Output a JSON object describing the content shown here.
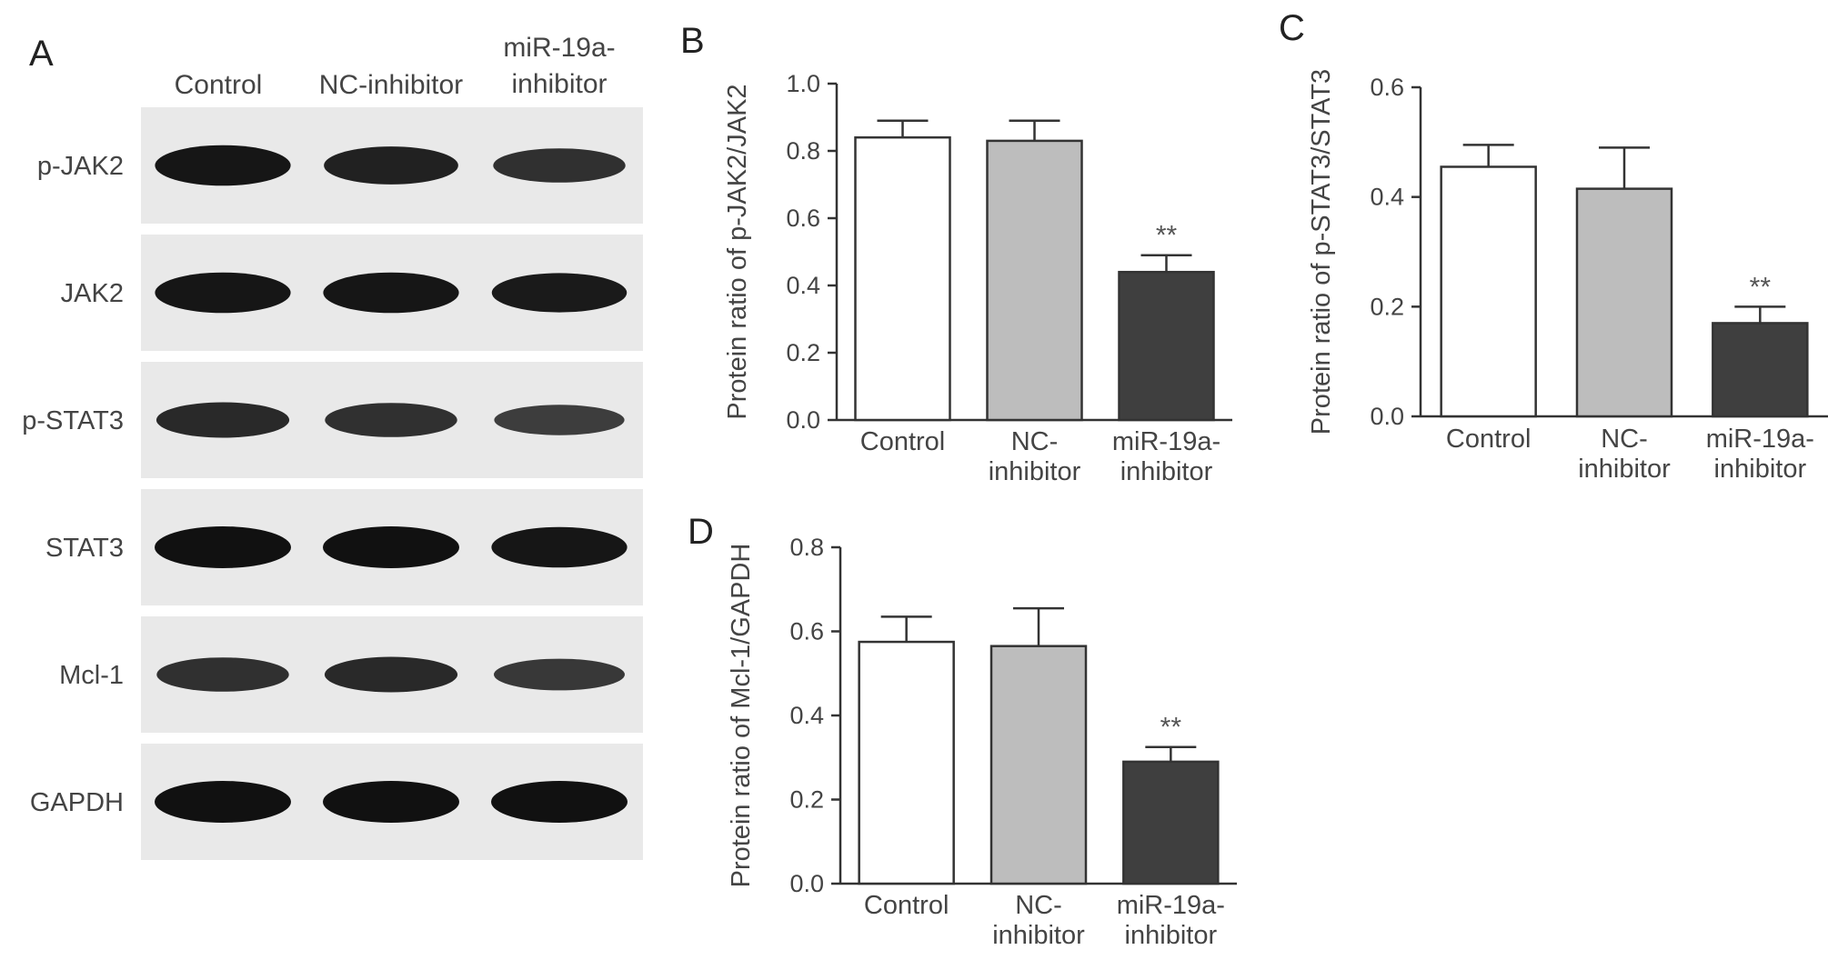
{
  "colors": {
    "control": "#ffffff",
    "nc_inhibitor": "#bdbdbd",
    "mir19a_inhibitor": "#3f3f3f",
    "bar_edge": "#333333",
    "blot_background": "#e9e9e9",
    "band": "#111111"
  },
  "panel_a": {
    "letter": "A",
    "lanes": [
      {
        "lines": [
          "Control"
        ]
      },
      {
        "lines": [
          "NC-inhibitor"
        ]
      },
      {
        "lines": [
          "miR-19a-",
          "inhibitor"
        ]
      }
    ],
    "rows": [
      {
        "label": "p-JAK2",
        "intensity": [
          0.95,
          0.85,
          0.7
        ]
      },
      {
        "label": "JAK2",
        "intensity": [
          0.95,
          0.95,
          0.9
        ]
      },
      {
        "label": "p-STAT3",
        "intensity": [
          0.75,
          0.7,
          0.55
        ]
      },
      {
        "label": "STAT3",
        "intensity": [
          1.0,
          1.0,
          0.95
        ]
      },
      {
        "label": "Mcl-1",
        "intensity": [
          0.7,
          0.75,
          0.6
        ]
      },
      {
        "label": "GAPDH",
        "intensity": [
          1.0,
          1.0,
          1.0
        ]
      }
    ]
  },
  "chart_data": [
    {
      "panel": "B",
      "type": "bar",
      "categories": [
        [
          "Control"
        ],
        [
          "NC-",
          "inhibitor"
        ],
        [
          "miR-19a-",
          "inhibitor"
        ]
      ],
      "values": [
        0.84,
        0.83,
        0.44
      ],
      "errors": [
        0.05,
        0.06,
        0.05
      ],
      "significance": [
        "",
        "",
        "**"
      ],
      "ylabel": "Protein ratio of p-JAK2/JAK2",
      "ylim": [
        0,
        1.0
      ],
      "yticks": [
        "0.0",
        "0.2",
        "0.4",
        "0.6",
        "0.8",
        "1.0"
      ],
      "grid": false,
      "legend": "none"
    },
    {
      "panel": "C",
      "type": "bar",
      "categories": [
        [
          "Control"
        ],
        [
          "NC-",
          "inhibitor"
        ],
        [
          "miR-19a-",
          "inhibitor"
        ]
      ],
      "values": [
        0.455,
        0.415,
        0.17
      ],
      "errors": [
        0.04,
        0.075,
        0.03
      ],
      "significance": [
        "",
        "",
        "**"
      ],
      "ylabel": "Protein ratio of p-STAT3/STAT3",
      "ylim": [
        0,
        0.6
      ],
      "yticks": [
        "0.0",
        "0.2",
        "0.4",
        "0.6"
      ],
      "grid": false,
      "legend": "none"
    },
    {
      "panel": "D",
      "type": "bar",
      "categories": [
        [
          "Control"
        ],
        [
          "NC-",
          "inhibitor"
        ],
        [
          "miR-19a-",
          "inhibitor"
        ]
      ],
      "values": [
        0.575,
        0.565,
        0.29
      ],
      "errors": [
        0.06,
        0.09,
        0.035
      ],
      "significance": [
        "",
        "",
        "**"
      ],
      "ylabel": "Protein ratio of Mcl-1/GAPDH",
      "ylim": [
        0,
        0.8
      ],
      "yticks": [
        "0.0",
        "0.2",
        "0.4",
        "0.6",
        "0.8"
      ],
      "grid": false,
      "legend": "none"
    }
  ]
}
